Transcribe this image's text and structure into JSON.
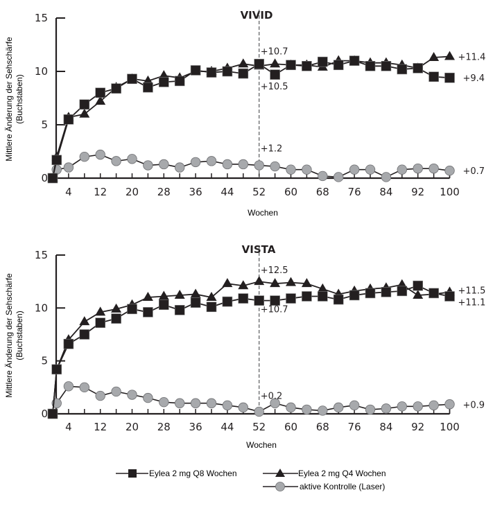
{
  "legend": [
    {
      "label": "Eylea 2 mg Q8 Wochen",
      "marker": "square",
      "color": "#231f20"
    },
    {
      "label": "Eylea 2 mg Q4 Wochen",
      "marker": "triangle",
      "color": "#231f20"
    },
    {
      "label": "aktive Kontrolle (Laser)",
      "marker": "circle",
      "color": "#a7a9ac"
    }
  ],
  "chart_data": [
    {
      "type": "line",
      "title": "VIVID",
      "xlabel": "Wochen",
      "ylabel": "Mittlere Änderung der Sehschärfe",
      "ylabel2": "(Buchstaben)",
      "xlim": [
        0,
        100
      ],
      "ylim": [
        0,
        15
      ],
      "xticks": [
        4,
        12,
        20,
        28,
        36,
        44,
        52,
        60,
        68,
        76,
        84,
        92,
        100
      ],
      "yticks": [
        0,
        5,
        10,
        15
      ],
      "grid": false,
      "reference_line_week": 52,
      "annotations_52": [
        "+10.7",
        "+10.5",
        "+1.2"
      ],
      "end_labels": [
        "+11.4",
        "+9.4",
        "+0.7"
      ],
      "series": [
        {
          "name": "Eylea 2 mg Q8 Wochen",
          "marker": "square",
          "x": [
            0,
            1,
            4,
            8,
            12,
            16,
            20,
            24,
            28,
            32,
            36,
            40,
            44,
            48,
            52,
            56,
            60,
            64,
            68,
            72,
            76,
            80,
            84,
            88,
            92,
            96,
            100
          ],
          "values": [
            0,
            1.7,
            5.5,
            6.9,
            8.0,
            8.4,
            9.3,
            8.5,
            9.0,
            9.1,
            10.1,
            9.9,
            10.0,
            9.8,
            10.7,
            9.7,
            10.6,
            10.5,
            10.9,
            10.6,
            11.0,
            10.5,
            10.5,
            10.2,
            10.3,
            9.5,
            9.4
          ]
        },
        {
          "name": "Eylea 2 mg Q4 Wochen",
          "marker": "triangle",
          "x": [
            0,
            1,
            4,
            8,
            12,
            16,
            20,
            24,
            28,
            32,
            36,
            40,
            44,
            48,
            52,
            56,
            60,
            64,
            68,
            72,
            76,
            80,
            84,
            88,
            92,
            96,
            100
          ],
          "values": [
            0,
            2.0,
            5.7,
            6.0,
            7.2,
            8.5,
            9.3,
            9.1,
            9.6,
            9.4,
            10.0,
            10.0,
            10.3,
            10.7,
            10.5,
            10.7,
            10.6,
            10.6,
            10.4,
            11.0,
            11.0,
            10.8,
            10.8,
            10.6,
            10.3,
            11.3,
            11.4
          ]
        },
        {
          "name": "aktive Kontrolle (Laser)",
          "marker": "circle",
          "x": [
            1,
            4,
            8,
            12,
            16,
            20,
            24,
            28,
            32,
            36,
            40,
            44,
            48,
            52,
            56,
            60,
            64,
            68,
            72,
            76,
            80,
            84,
            88,
            92,
            96,
            100
          ],
          "values": [
            0.8,
            1.0,
            2.0,
            2.2,
            1.6,
            1.8,
            1.2,
            1.3,
            1.0,
            1.5,
            1.6,
            1.3,
            1.3,
            1.2,
            1.1,
            0.8,
            0.8,
            0.2,
            0.1,
            0.8,
            0.8,
            0.1,
            0.8,
            0.9,
            0.9,
            0.7
          ]
        }
      ]
    },
    {
      "type": "line",
      "title": "VISTA",
      "xlabel": "Wochen",
      "ylabel": "Mittlere Änderung der Sehschärfe",
      "ylabel2": "(Buchstaben)",
      "xlim": [
        0,
        100
      ],
      "ylim": [
        0,
        15
      ],
      "xticks": [
        4,
        12,
        20,
        28,
        36,
        44,
        52,
        60,
        68,
        76,
        84,
        92,
        100
      ],
      "yticks": [
        0,
        5,
        10,
        15
      ],
      "grid": false,
      "reference_line_week": 52,
      "annotations_52": [
        "+12.5",
        "+10.7",
        "+0.2"
      ],
      "end_labels": [
        "+11.5",
        "+11.1",
        "+0.9"
      ],
      "series": [
        {
          "name": "Eylea 2 mg Q8 Wochen",
          "marker": "square",
          "x": [
            0,
            1,
            4,
            8,
            12,
            16,
            20,
            24,
            28,
            32,
            36,
            40,
            44,
            48,
            52,
            56,
            60,
            64,
            68,
            72,
            76,
            80,
            84,
            88,
            92,
            96,
            100
          ],
          "values": [
            0,
            4.2,
            6.6,
            7.5,
            8.6,
            9.0,
            9.9,
            9.6,
            10.3,
            9.8,
            10.5,
            10.1,
            10.6,
            10.9,
            10.7,
            10.7,
            10.9,
            11.1,
            11.1,
            10.8,
            11.2,
            11.4,
            11.5,
            11.6,
            12.1,
            11.4,
            11.1
          ]
        },
        {
          "name": "Eylea 2 mg Q4 Wochen",
          "marker": "triangle",
          "x": [
            0,
            1,
            4,
            8,
            12,
            16,
            20,
            24,
            28,
            32,
            36,
            40,
            44,
            48,
            52,
            56,
            60,
            64,
            68,
            72,
            76,
            80,
            84,
            88,
            92,
            96,
            100
          ],
          "values": [
            0,
            4.2,
            7.0,
            8.7,
            9.6,
            9.9,
            10.3,
            11.0,
            11.1,
            11.2,
            11.3,
            11.0,
            12.3,
            12.1,
            12.5,
            12.3,
            12.4,
            12.3,
            11.8,
            11.3,
            11.6,
            11.8,
            11.9,
            12.2,
            11.2,
            11.3,
            11.5
          ]
        },
        {
          "name": "aktive Kontrolle (Laser)",
          "marker": "circle",
          "x": [
            1,
            4,
            8,
            12,
            16,
            20,
            24,
            28,
            32,
            36,
            40,
            44,
            48,
            52,
            56,
            60,
            64,
            68,
            72,
            76,
            80,
            84,
            88,
            92,
            96,
            100
          ],
          "values": [
            1.0,
            2.6,
            2.5,
            1.7,
            2.1,
            1.8,
            1.5,
            1.1,
            1.0,
            1.0,
            1.0,
            0.8,
            0.6,
            0.2,
            1.0,
            0.6,
            0.4,
            0.3,
            0.6,
            0.8,
            0.4,
            0.5,
            0.7,
            0.7,
            0.8,
            0.9
          ]
        }
      ]
    }
  ]
}
